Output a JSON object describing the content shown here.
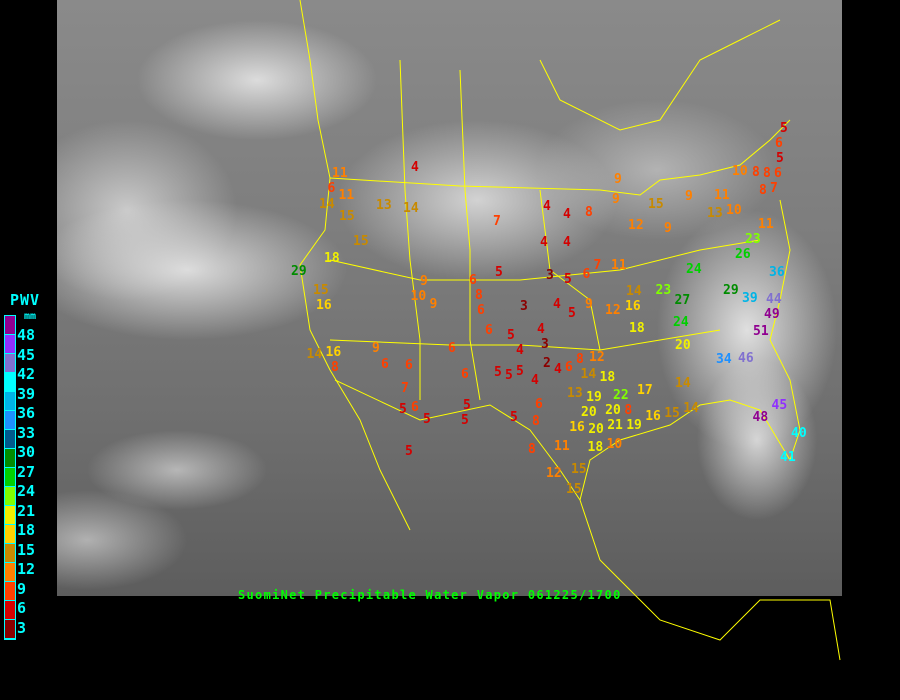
{
  "caption": "SuomiNet Precipitable Water Vapor 061225/1700",
  "legend": {
    "title": "PWV",
    "unit": "mm",
    "labels": [
      "48",
      "45",
      "42",
      "39",
      "36",
      "33",
      "30",
      "27",
      "24",
      "21",
      "18",
      "15",
      "12",
      "9",
      "6",
      "3"
    ],
    "colors": [
      "#900090",
      "#9030ff",
      "#8070d0",
      "#00ffff",
      "#00b4e6",
      "#1e90ff",
      "#005a8c",
      "#008c00",
      "#00d000",
      "#80ff00",
      "#f0f000",
      "#ffd200",
      "#c88a00",
      "#ff8000",
      "#ff4000",
      "#d40000",
      "#8b0000"
    ]
  },
  "stations": [
    4,
    6,
    11,
    11,
    14,
    15,
    13,
    14,
    15,
    18,
    29,
    15,
    16,
    7,
    4,
    4,
    8,
    4,
    4,
    5,
    3,
    5,
    6,
    7,
    11,
    9,
    9,
    15,
    12,
    9,
    9,
    11,
    13,
    10,
    10,
    8,
    8,
    6,
    8,
    7,
    5,
    6,
    5,
    11,
    23,
    26,
    24,
    36,
    23,
    27,
    29,
    39,
    44,
    49,
    51,
    34,
    46,
    24,
    20,
    18,
    16,
    12,
    14,
    9,
    5,
    4,
    3,
    6,
    8,
    6,
    9,
    10,
    9,
    6,
    5,
    6,
    9,
    6,
    6,
    7,
    5,
    6,
    5,
    6,
    5,
    5,
    5,
    4,
    4,
    4,
    3,
    2,
    4,
    6,
    8,
    12,
    14,
    18,
    13,
    19,
    20,
    22,
    20,
    8,
    21,
    19,
    16,
    15,
    14,
    14,
    17,
    16,
    20,
    18,
    10,
    5,
    5,
    5,
    6,
    8,
    11,
    8,
    12,
    15,
    15,
    5,
    14,
    16,
    8,
    45,
    48,
    40,
    41
  ]
}
